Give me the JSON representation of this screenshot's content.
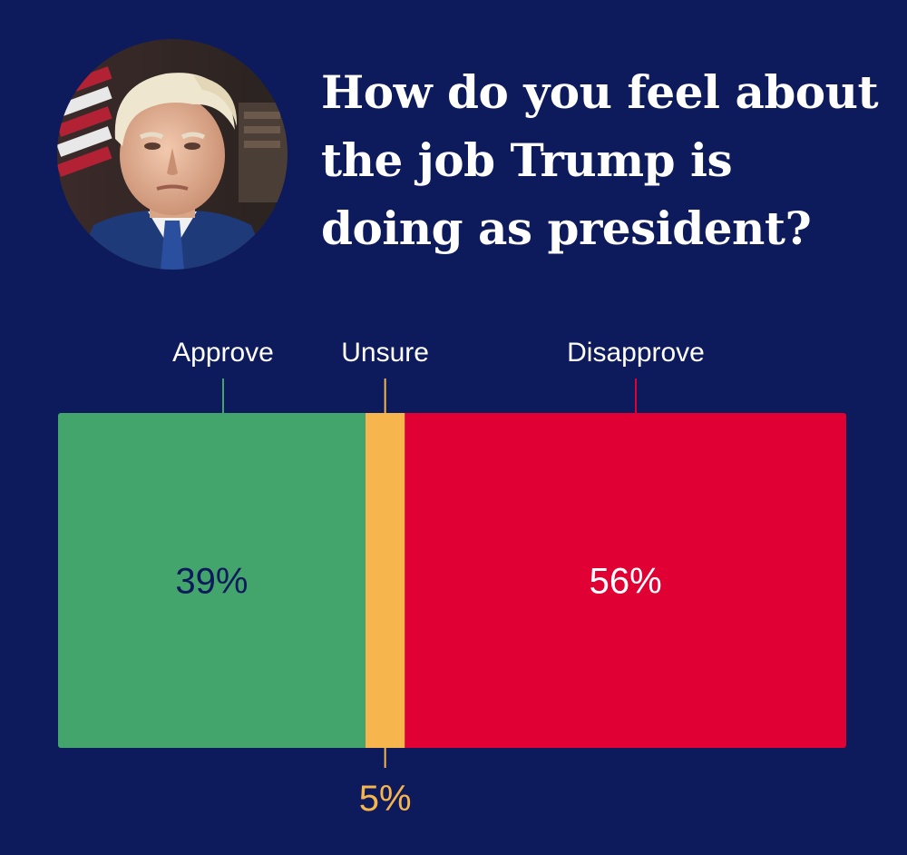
{
  "header": {
    "title": "How do you feel about the job Trump is doing as president?"
  },
  "chart_data": {
    "type": "bar",
    "orientation": "horizontal-stacked",
    "title": "How do you feel about the job Trump is doing as president?",
    "categories": [
      "Approve",
      "Unsure",
      "Disapprove"
    ],
    "values": [
      39,
      5,
      56
    ],
    "value_labels": [
      "39%",
      "5%",
      "56%"
    ],
    "colors": [
      "#43a56b",
      "#f7b64d",
      "#e00033"
    ],
    "label_colors": [
      "#0d1a5c",
      "#f7b64d",
      "#ffffff"
    ],
    "background": "#0d1a5c",
    "xlim": [
      0,
      100
    ],
    "grid": false,
    "legend": "none"
  }
}
